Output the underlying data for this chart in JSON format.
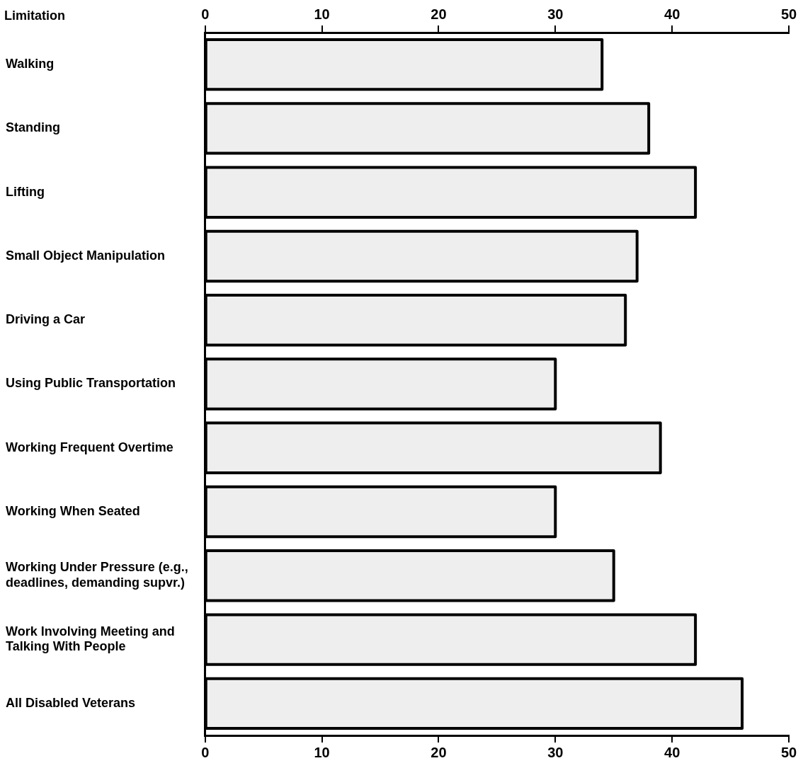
{
  "chart_data": {
    "type": "bar",
    "orientation": "horizontal",
    "ylabel": "Limitation",
    "categories": [
      "Walking",
      "Standing",
      "Lifting",
      "Small Object Manipulation",
      "Driving a Car",
      "Using Public Transportation",
      "Working Frequent Overtime",
      "Working When Seated",
      "Working Under Pressure (e.g., deadlines, demanding supvr.)",
      "Work Involving Meeting and Talking With People",
      "All Disabled Veterans"
    ],
    "values": [
      34,
      38,
      42,
      37,
      36,
      30,
      39,
      30,
      35,
      42,
      46
    ],
    "color": "#eeeeee",
    "xlim": [
      0,
      50
    ],
    "xticks": [
      0,
      10,
      20,
      30,
      40,
      50
    ],
    "x2lim": [
      0,
      50
    ],
    "x2ticks": [
      0,
      10,
      20,
      30,
      40,
      50
    ],
    "grid": false,
    "legend": false
  }
}
